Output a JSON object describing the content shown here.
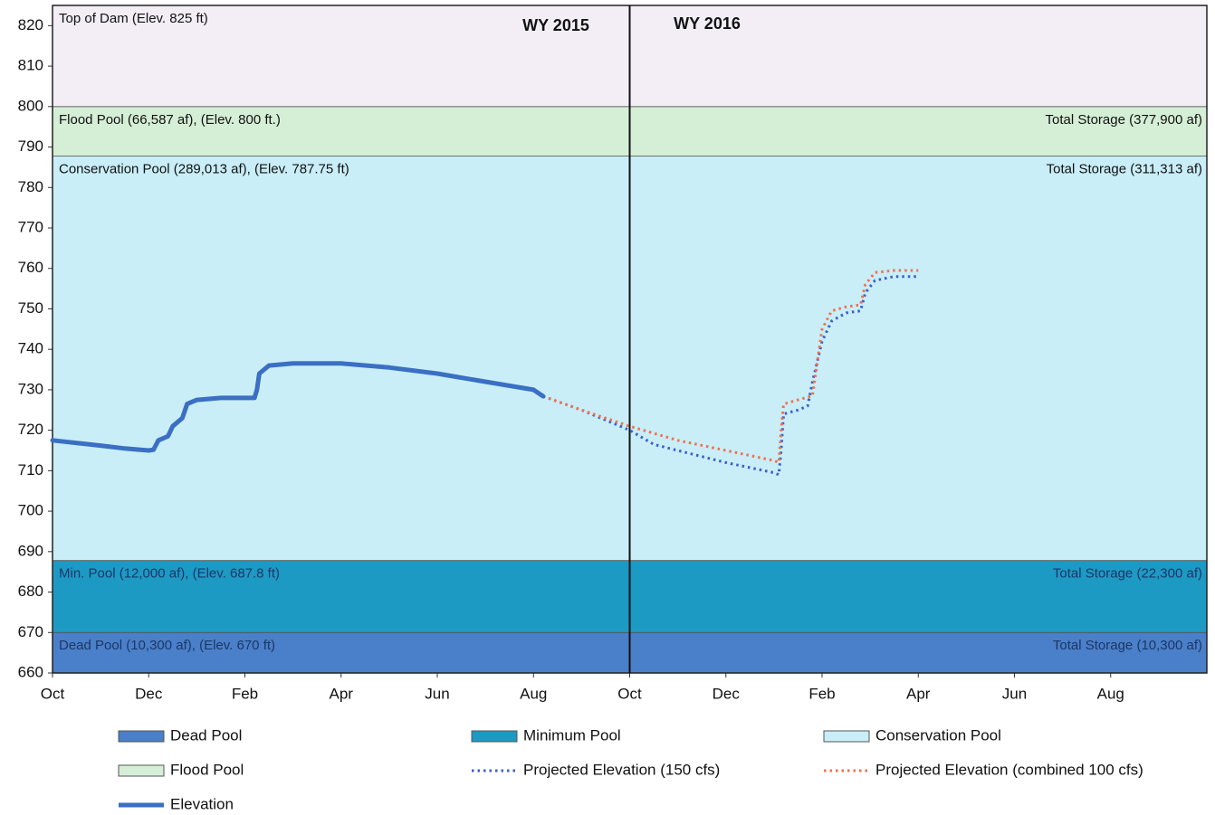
{
  "chart_data": {
    "type": "line",
    "annotations": [
      "WY 2015",
      "WY 2016"
    ],
    "xlim": [
      0,
      24
    ],
    "xticks": [
      {
        "value": 0,
        "label": "Oct"
      },
      {
        "value": 2,
        "label": "Dec"
      },
      {
        "value": 4,
        "label": "Feb"
      },
      {
        "value": 6,
        "label": "Apr"
      },
      {
        "value": 8,
        "label": "Jun"
      },
      {
        "value": 10,
        "label": "Aug"
      },
      {
        "value": 12,
        "label": "Oct"
      },
      {
        "value": 14,
        "label": "Dec"
      },
      {
        "value": 16,
        "label": "Feb"
      },
      {
        "value": 18,
        "label": "Apr"
      },
      {
        "value": 20,
        "label": "Jun"
      },
      {
        "value": 22,
        "label": "Aug"
      }
    ],
    "divider": 12,
    "ylim": [
      660,
      825
    ],
    "yticks": [
      660,
      670,
      680,
      690,
      700,
      710,
      720,
      730,
      740,
      750,
      760,
      770,
      780,
      790,
      800,
      810,
      820
    ],
    "bands": [
      {
        "name": "Dead Pool",
        "from": 660,
        "to": 670,
        "color": "#4a7fc9",
        "label": "Dead Pool (10,300 af), (Elev. 670 ft)",
        "right_label": "Total Storage (10,300 af)"
      },
      {
        "name": "Minimum Pool",
        "from": 670,
        "to": 687.8,
        "color": "#1d9ac4",
        "label": "Min. Pool (12,000 af), (Elev. 687.8 ft)",
        "right_label": "Total Storage (22,300 af)"
      },
      {
        "name": "Conservation Pool",
        "from": 687.8,
        "to": 787.75,
        "color": "#c9eef8",
        "label": "Conservation Pool (289,013 af), (Elev. 787.75 ft)",
        "right_label": "Total Storage (311,313 af)"
      },
      {
        "name": "Flood Pool",
        "from": 787.75,
        "to": 800,
        "color": "#d5efd6",
        "label": "Flood Pool (66,587 af), (Elev. 800 ft.)",
        "right_label": "Total Storage (377,900 af)"
      },
      {
        "from": 800,
        "to": 825,
        "color": "#f3eef6",
        "label": "Top of  Dam (Elev. 825 ft)"
      }
    ],
    "series": [
      {
        "name": "Projected Elevation (150 cfs)",
        "color": "#3b5fcb",
        "dash": "dotted",
        "x": [
          10.2,
          11,
          12,
          12.5,
          13,
          14,
          15,
          15.1,
          15.15,
          15.2,
          15.5,
          15.7,
          15.8,
          16,
          16.2,
          16.5,
          16.8,
          16.9,
          17.1,
          17.5,
          18
        ],
        "values": [
          728.4,
          725,
          720,
          716.5,
          715,
          712,
          709.5,
          709,
          715,
          724,
          725,
          726,
          732,
          742,
          747,
          749,
          749.5,
          754,
          757,
          758,
          758
        ]
      },
      {
        "name": "Projected Elevation (combined 100 cfs)",
        "color": "#f0704e",
        "dash": "dotted",
        "x": [
          10.2,
          11,
          12,
          13,
          14,
          15,
          15.1,
          15.15,
          15.2,
          15.5,
          15.8,
          16,
          16.2,
          16.5,
          16.8,
          16.9,
          17.1,
          17.5,
          18
        ],
        "values": [
          728.4,
          725,
          721,
          717.5,
          715,
          712.5,
          712,
          720,
          726.5,
          727.5,
          728.5,
          745,
          749.5,
          750.5,
          751,
          756,
          759,
          759.5,
          759.5
        ]
      },
      {
        "name": "Elevation",
        "color": "#3a6fc4",
        "dash": "solid",
        "x": [
          0,
          1,
          1.5,
          2,
          2.1,
          2.2,
          2.4,
          2.5,
          2.7,
          2.8,
          3,
          3.5,
          4,
          4.2,
          4.25,
          4.3,
          4.5,
          5,
          6,
          7,
          8,
          9,
          10,
          10.2
        ],
        "values": [
          717.5,
          716.2,
          715.5,
          715,
          715.2,
          717.5,
          718.5,
          721,
          723,
          726.5,
          727.5,
          728,
          728,
          728,
          730,
          734,
          736,
          736.5,
          736.5,
          735.5,
          734,
          732,
          730,
          728.4
        ]
      }
    ]
  }
}
